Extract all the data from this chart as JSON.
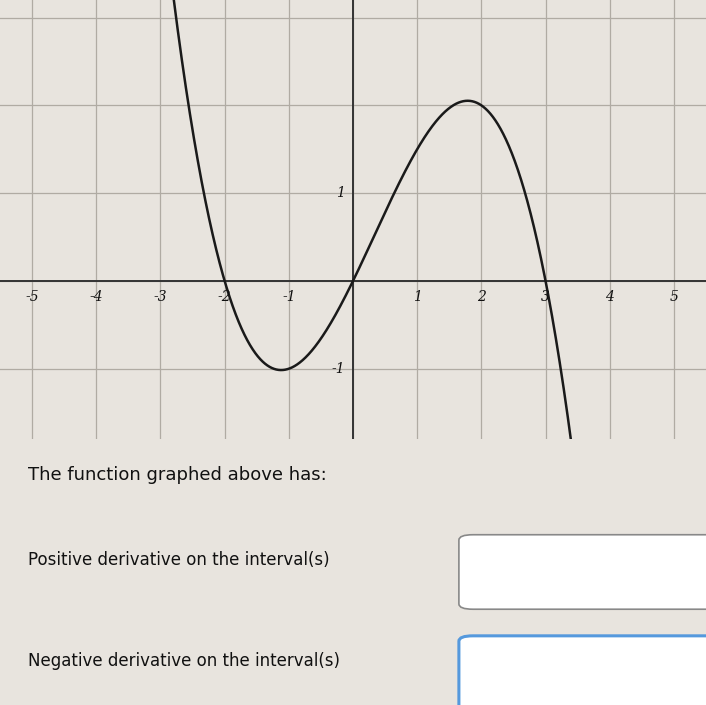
{
  "xlim": [
    -5.5,
    5.5
  ],
  "ylim": [
    -1.8,
    3.2
  ],
  "xticks": [
    -5,
    -4,
    -3,
    -2,
    -1,
    1,
    2,
    3,
    4,
    5
  ],
  "ytick_pos": [
    -1,
    1
  ],
  "ytick_labels": [
    "-1",
    "1"
  ],
  "grid_color": "#b0aba3",
  "axis_color": "#333333",
  "curve_color": "#1a1a1a",
  "bg_color": "#e8e4de",
  "fig_bg": "#e8e4de",
  "text_color": "#111111",
  "box1_color": "#888888",
  "box2_color": "#5599dd",
  "title_text": "The function graphed above has:",
  "label1": "Positive derivative on the interval(s)",
  "label2": "Negative derivative on the interval(s)",
  "curve_roots": [
    -2,
    0,
    3
  ],
  "curve_scale": -0.25,
  "curve_xstart": -3.5,
  "curve_xend": 3.5
}
